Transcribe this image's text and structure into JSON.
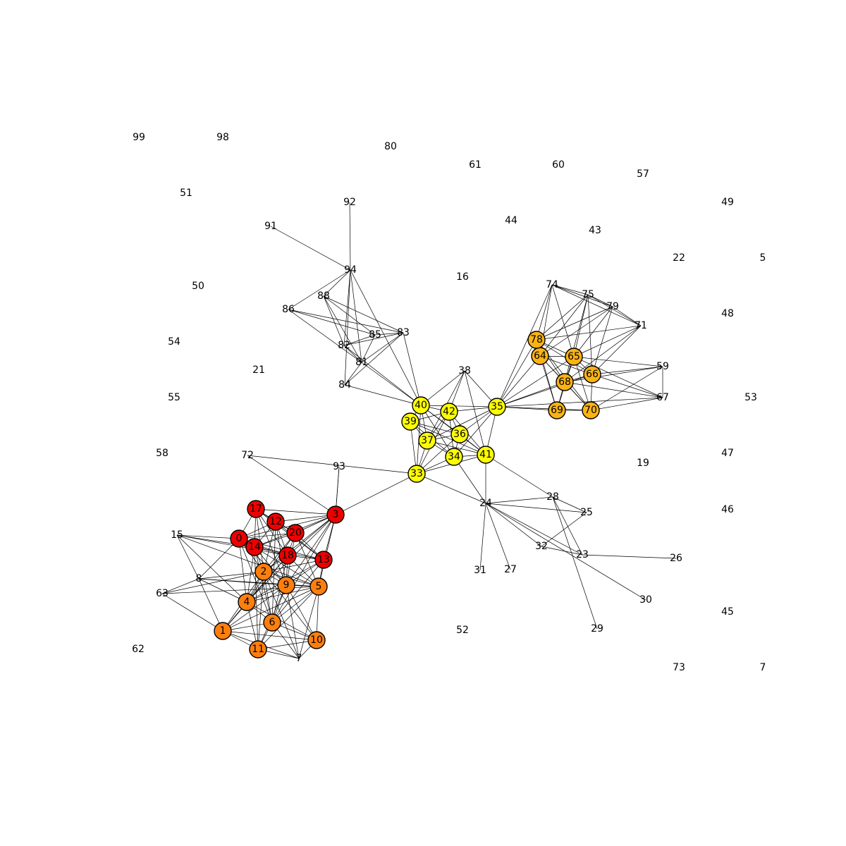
{
  "colors": {
    "red": "#ee0000",
    "orange": "#ff7f0e",
    "amber": "#fbb314",
    "yellow": "#ffff00",
    "edge": "#000000",
    "background": "#ffffff"
  },
  "graph": {
    "nodes": [
      {
        "id": "0",
        "label": "0",
        "group": "red"
      },
      {
        "id": "1",
        "label": "1",
        "group": "orange"
      },
      {
        "id": "2",
        "label": "2",
        "group": "orange"
      },
      {
        "id": "3",
        "label": "3",
        "group": "red"
      },
      {
        "id": "4",
        "label": "4",
        "group": "orange"
      },
      {
        "id": "5",
        "label": "5",
        "group": "orange"
      },
      {
        "id": "6",
        "label": "6",
        "group": "orange"
      },
      {
        "id": "7",
        "label": "7",
        "group": null
      },
      {
        "id": "8",
        "label": "8",
        "group": null
      },
      {
        "id": "9",
        "label": "9",
        "group": "orange"
      },
      {
        "id": "10",
        "label": "10",
        "group": "orange"
      },
      {
        "id": "11",
        "label": "11",
        "group": "orange"
      },
      {
        "id": "12",
        "label": "12",
        "group": "red"
      },
      {
        "id": "13",
        "label": "13",
        "group": "red"
      },
      {
        "id": "14",
        "label": "14",
        "group": "red"
      },
      {
        "id": "15",
        "label": "15",
        "group": null
      },
      {
        "id": "16",
        "label": "16",
        "group": null
      },
      {
        "id": "17",
        "label": "17",
        "group": "red"
      },
      {
        "id": "18",
        "label": "18",
        "group": "red"
      },
      {
        "id": "19",
        "label": "19",
        "group": null
      },
      {
        "id": "20",
        "label": "20",
        "group": "red"
      },
      {
        "id": "21",
        "label": "21",
        "group": null
      },
      {
        "id": "22",
        "label": "22",
        "group": null
      },
      {
        "id": "23",
        "label": "23",
        "group": null
      },
      {
        "id": "24",
        "label": "24",
        "group": null
      },
      {
        "id": "25",
        "label": "25",
        "group": null
      },
      {
        "id": "26",
        "label": "26",
        "group": null
      },
      {
        "id": "27",
        "label": "27",
        "group": null
      },
      {
        "id": "28",
        "label": "28",
        "group": null
      },
      {
        "id": "29",
        "label": "29",
        "group": null
      },
      {
        "id": "30",
        "label": "30",
        "group": null
      },
      {
        "id": "31",
        "label": "31",
        "group": null
      },
      {
        "id": "32",
        "label": "32",
        "group": null
      },
      {
        "id": "33",
        "label": "33",
        "group": "yellow"
      },
      {
        "id": "34",
        "label": "34",
        "group": "yellow"
      },
      {
        "id": "35",
        "label": "35",
        "group": "yellow"
      },
      {
        "id": "36",
        "label": "36",
        "group": "yellow"
      },
      {
        "id": "37",
        "label": "37",
        "group": "yellow"
      },
      {
        "id": "38",
        "label": "38",
        "group": null
      },
      {
        "id": "39",
        "label": "39",
        "group": "yellow"
      },
      {
        "id": "40",
        "label": "40",
        "group": "yellow"
      },
      {
        "id": "41",
        "label": "41",
        "group": "yellow"
      },
      {
        "id": "42",
        "label": "42",
        "group": "yellow"
      },
      {
        "id": "43",
        "label": "43",
        "group": null
      },
      {
        "id": "44",
        "label": "44",
        "group": null
      },
      {
        "id": "45",
        "label": "45",
        "group": null
      },
      {
        "id": "46",
        "label": "46",
        "group": null
      },
      {
        "id": "47",
        "label": "47",
        "group": null
      },
      {
        "id": "48",
        "label": "48",
        "group": null
      },
      {
        "id": "49",
        "label": "49",
        "group": null
      },
      {
        "id": "50",
        "label": "50",
        "group": null
      },
      {
        "id": "51",
        "label": "51",
        "group": null
      },
      {
        "id": "52",
        "label": "52",
        "group": null
      },
      {
        "id": "53",
        "label": "53",
        "group": null
      },
      {
        "id": "54",
        "label": "54",
        "group": null
      },
      {
        "id": "55",
        "label": "55",
        "group": null
      },
      {
        "id": "57",
        "label": "57",
        "group": null
      },
      {
        "id": "58",
        "label": "58",
        "group": null
      },
      {
        "id": "59",
        "label": "59",
        "group": null
      },
      {
        "id": "60",
        "label": "60",
        "group": null
      },
      {
        "id": "61",
        "label": "61",
        "group": null
      },
      {
        "id": "62",
        "label": "62",
        "group": null
      },
      {
        "id": "63",
        "label": "63",
        "group": null
      },
      {
        "id": "64",
        "label": "64",
        "group": "amber"
      },
      {
        "id": "65",
        "label": "65",
        "group": "amber"
      },
      {
        "id": "66",
        "label": "66",
        "group": "amber"
      },
      {
        "id": "67",
        "label": "67",
        "group": null
      },
      {
        "id": "68",
        "label": "68",
        "group": "amber"
      },
      {
        "id": "69",
        "label": "69",
        "group": "amber"
      },
      {
        "id": "70",
        "label": "70",
        "group": "amber"
      },
      {
        "id": "71",
        "label": "71",
        "group": null
      },
      {
        "id": "72",
        "label": "72",
        "group": null
      },
      {
        "id": "73",
        "label": "73",
        "group": null
      },
      {
        "id": "74",
        "label": "74",
        "group": null
      },
      {
        "id": "75",
        "label": "75",
        "group": null
      },
      {
        "id": "78",
        "label": "78",
        "group": "amber"
      },
      {
        "id": "79",
        "label": "79",
        "group": null
      },
      {
        "id": "80",
        "label": "80",
        "group": null
      },
      {
        "id": "81",
        "label": "81",
        "group": null
      },
      {
        "id": "82",
        "label": "82",
        "group": null
      },
      {
        "id": "83",
        "label": "83",
        "group": null
      },
      {
        "id": "84",
        "label": "84",
        "group": null
      },
      {
        "id": "85",
        "label": "85",
        "group": null
      },
      {
        "id": "86",
        "label": "86",
        "group": null
      },
      {
        "id": "87",
        "label": "87",
        "group": null
      },
      {
        "id": "88",
        "label": "88",
        "group": null
      },
      {
        "id": "91",
        "label": "91",
        "group": null
      },
      {
        "id": "92",
        "label": "92",
        "group": null
      },
      {
        "id": "93",
        "label": "93",
        "group": null
      },
      {
        "id": "94",
        "label": "94",
        "group": null
      },
      {
        "id": "98",
        "label": "98",
        "group": null
      },
      {
        "id": "99",
        "label": "99",
        "group": null
      },
      {
        "id": "e1",
        "label": "5",
        "group": null
      },
      {
        "id": "e2",
        "label": "7",
        "group": null
      }
    ],
    "edges": [
      [
        "0",
        "12"
      ],
      [
        "0",
        "14"
      ],
      [
        "0",
        "18"
      ],
      [
        "0",
        "20"
      ],
      [
        "0",
        "2"
      ],
      [
        "0",
        "9"
      ],
      [
        "0",
        "4"
      ],
      [
        "0",
        "6"
      ],
      [
        "0",
        "15"
      ],
      [
        "0",
        "3"
      ],
      [
        "0",
        "13"
      ],
      [
        "0",
        "17"
      ],
      [
        "0",
        "8"
      ],
      [
        "14",
        "12"
      ],
      [
        "14",
        "18"
      ],
      [
        "14",
        "20"
      ],
      [
        "14",
        "13"
      ],
      [
        "14",
        "2"
      ],
      [
        "14",
        "9"
      ],
      [
        "14",
        "5"
      ],
      [
        "14",
        "4"
      ],
      [
        "14",
        "6"
      ],
      [
        "14",
        "11"
      ],
      [
        "14",
        "15"
      ],
      [
        "14",
        "3"
      ],
      [
        "14",
        "17"
      ],
      [
        "12",
        "17"
      ],
      [
        "12",
        "18"
      ],
      [
        "12",
        "20"
      ],
      [
        "12",
        "13"
      ],
      [
        "12",
        "3"
      ],
      [
        "12",
        "2"
      ],
      [
        "12",
        "9"
      ],
      [
        "12",
        "6"
      ],
      [
        "17",
        "3"
      ],
      [
        "17",
        "20"
      ],
      [
        "17",
        "18"
      ],
      [
        "17",
        "2"
      ],
      [
        "17",
        "9"
      ],
      [
        "17",
        "13"
      ],
      [
        "18",
        "20"
      ],
      [
        "18",
        "13"
      ],
      [
        "18",
        "3"
      ],
      [
        "18",
        "2"
      ],
      [
        "18",
        "9"
      ],
      [
        "18",
        "5"
      ],
      [
        "18",
        "6"
      ],
      [
        "18",
        "4"
      ],
      [
        "18",
        "15"
      ],
      [
        "18",
        "1"
      ],
      [
        "20",
        "3"
      ],
      [
        "20",
        "13"
      ],
      [
        "20",
        "2"
      ],
      [
        "20",
        "9"
      ],
      [
        "20",
        "5"
      ],
      [
        "20",
        "4"
      ],
      [
        "3",
        "13"
      ],
      [
        "3",
        "2"
      ],
      [
        "3",
        "9"
      ],
      [
        "3",
        "4"
      ],
      [
        "3",
        "6"
      ],
      [
        "3",
        "5"
      ],
      [
        "3",
        "33"
      ],
      [
        "3",
        "93"
      ],
      [
        "13",
        "2"
      ],
      [
        "13",
        "9"
      ],
      [
        "13",
        "5"
      ],
      [
        "13",
        "6"
      ],
      [
        "13",
        "4"
      ],
      [
        "2",
        "9"
      ],
      [
        "2",
        "4"
      ],
      [
        "2",
        "6"
      ],
      [
        "2",
        "1"
      ],
      [
        "2",
        "5"
      ],
      [
        "2",
        "8"
      ],
      [
        "2",
        "63"
      ],
      [
        "2",
        "11"
      ],
      [
        "2",
        "7"
      ],
      [
        "2",
        "10"
      ],
      [
        "9",
        "5"
      ],
      [
        "9",
        "4"
      ],
      [
        "9",
        "6"
      ],
      [
        "9",
        "11"
      ],
      [
        "9",
        "10"
      ],
      [
        "9",
        "7"
      ],
      [
        "9",
        "1"
      ],
      [
        "9",
        "8"
      ],
      [
        "4",
        "6"
      ],
      [
        "4",
        "1"
      ],
      [
        "4",
        "11"
      ],
      [
        "4",
        "5"
      ],
      [
        "4",
        "10"
      ],
      [
        "4",
        "8"
      ],
      [
        "4",
        "15"
      ],
      [
        "6",
        "1"
      ],
      [
        "6",
        "11"
      ],
      [
        "6",
        "10"
      ],
      [
        "6",
        "5"
      ],
      [
        "6",
        "7"
      ],
      [
        "5",
        "10"
      ],
      [
        "5",
        "11"
      ],
      [
        "5",
        "7"
      ],
      [
        "5",
        "1"
      ],
      [
        "5",
        "8"
      ],
      [
        "5",
        "63"
      ],
      [
        "1",
        "11"
      ],
      [
        "1",
        "10"
      ],
      [
        "1",
        "8"
      ],
      [
        "1",
        "63"
      ],
      [
        "1",
        "7"
      ],
      [
        "11",
        "10"
      ],
      [
        "11",
        "7"
      ],
      [
        "10",
        "7"
      ],
      [
        "15",
        "8"
      ],
      [
        "15",
        "5"
      ],
      [
        "8",
        "63"
      ],
      [
        "72",
        "3"
      ],
      [
        "72",
        "33"
      ],
      [
        "93",
        "3"
      ],
      [
        "33",
        "39"
      ],
      [
        "33",
        "40"
      ],
      [
        "33",
        "37"
      ],
      [
        "33",
        "36"
      ],
      [
        "33",
        "34"
      ],
      [
        "33",
        "41"
      ],
      [
        "33",
        "42"
      ],
      [
        "33",
        "24"
      ],
      [
        "34",
        "36"
      ],
      [
        "34",
        "37"
      ],
      [
        "34",
        "39"
      ],
      [
        "34",
        "40"
      ],
      [
        "34",
        "41"
      ],
      [
        "34",
        "42"
      ],
      [
        "34",
        "35"
      ],
      [
        "34",
        "24"
      ],
      [
        "35",
        "36"
      ],
      [
        "35",
        "37"
      ],
      [
        "35",
        "40"
      ],
      [
        "35",
        "41"
      ],
      [
        "35",
        "42"
      ],
      [
        "35",
        "38"
      ],
      [
        "35",
        "78"
      ],
      [
        "35",
        "64"
      ],
      [
        "35",
        "65"
      ],
      [
        "35",
        "66"
      ],
      [
        "35",
        "68"
      ],
      [
        "35",
        "69"
      ],
      [
        "35",
        "70"
      ],
      [
        "35",
        "67"
      ],
      [
        "35",
        "74"
      ],
      [
        "36",
        "37"
      ],
      [
        "36",
        "39"
      ],
      [
        "36",
        "40"
      ],
      [
        "36",
        "42"
      ],
      [
        "36",
        "41"
      ],
      [
        "37",
        "39"
      ],
      [
        "37",
        "40"
      ],
      [
        "37",
        "42"
      ],
      [
        "37",
        "41"
      ],
      [
        "39",
        "40"
      ],
      [
        "39",
        "42"
      ],
      [
        "39",
        "41"
      ],
      [
        "40",
        "42"
      ],
      [
        "40",
        "41"
      ],
      [
        "40",
        "38"
      ],
      [
        "40",
        "94"
      ],
      [
        "40",
        "81"
      ],
      [
        "40",
        "82"
      ],
      [
        "40",
        "83"
      ],
      [
        "40",
        "84"
      ],
      [
        "42",
        "38"
      ],
      [
        "42",
        "41"
      ],
      [
        "41",
        "38"
      ],
      [
        "41",
        "24"
      ],
      [
        "41",
        "28"
      ],
      [
        "38",
        "37"
      ],
      [
        "94",
        "92"
      ],
      [
        "94",
        "91"
      ],
      [
        "94",
        "86"
      ],
      [
        "94",
        "88"
      ],
      [
        "94",
        "82"
      ],
      [
        "94",
        "81"
      ],
      [
        "94",
        "84"
      ],
      [
        "86",
        "85"
      ],
      [
        "86",
        "83"
      ],
      [
        "86",
        "81"
      ],
      [
        "88",
        "82"
      ],
      [
        "88",
        "85"
      ],
      [
        "88",
        "81"
      ],
      [
        "88",
        "83"
      ],
      [
        "82",
        "85"
      ],
      [
        "82",
        "83"
      ],
      [
        "82",
        "81"
      ],
      [
        "81",
        "85"
      ],
      [
        "81",
        "83"
      ],
      [
        "81",
        "84"
      ],
      [
        "84",
        "83"
      ],
      [
        "85",
        "83"
      ],
      [
        "24",
        "25"
      ],
      [
        "24",
        "28"
      ],
      [
        "24",
        "27"
      ],
      [
        "24",
        "31"
      ],
      [
        "24",
        "23"
      ],
      [
        "24",
        "32"
      ],
      [
        "24",
        "30"
      ],
      [
        "28",
        "25"
      ],
      [
        "28",
        "23"
      ],
      [
        "28",
        "29"
      ],
      [
        "23",
        "26"
      ],
      [
        "23",
        "32"
      ],
      [
        "32",
        "25"
      ],
      [
        "78",
        "64"
      ],
      [
        "78",
        "65"
      ],
      [
        "78",
        "66"
      ],
      [
        "78",
        "68"
      ],
      [
        "78",
        "69"
      ],
      [
        "78",
        "70"
      ],
      [
        "78",
        "74"
      ],
      [
        "78",
        "75"
      ],
      [
        "78",
        "79"
      ],
      [
        "78",
        "71"
      ],
      [
        "64",
        "65"
      ],
      [
        "64",
        "66"
      ],
      [
        "64",
        "68"
      ],
      [
        "64",
        "69"
      ],
      [
        "64",
        "70"
      ],
      [
        "64",
        "74"
      ],
      [
        "64",
        "75"
      ],
      [
        "64",
        "79"
      ],
      [
        "65",
        "66"
      ],
      [
        "65",
        "68"
      ],
      [
        "65",
        "69"
      ],
      [
        "65",
        "70"
      ],
      [
        "65",
        "74"
      ],
      [
        "65",
        "75"
      ],
      [
        "65",
        "79"
      ],
      [
        "65",
        "71"
      ],
      [
        "65",
        "59"
      ],
      [
        "65",
        "67"
      ],
      [
        "66",
        "68"
      ],
      [
        "66",
        "70"
      ],
      [
        "66",
        "75"
      ],
      [
        "66",
        "79"
      ],
      [
        "66",
        "71"
      ],
      [
        "66",
        "59"
      ],
      [
        "66",
        "67"
      ],
      [
        "68",
        "69"
      ],
      [
        "68",
        "70"
      ],
      [
        "68",
        "59"
      ],
      [
        "68",
        "67"
      ],
      [
        "68",
        "71"
      ],
      [
        "68",
        "75"
      ],
      [
        "69",
        "70"
      ],
      [
        "70",
        "67"
      ],
      [
        "70",
        "59"
      ],
      [
        "74",
        "75"
      ],
      [
        "74",
        "79"
      ],
      [
        "74",
        "71"
      ],
      [
        "75",
        "79"
      ],
      [
        "75",
        "71"
      ],
      [
        "79",
        "71"
      ],
      [
        "59",
        "67"
      ]
    ]
  }
}
